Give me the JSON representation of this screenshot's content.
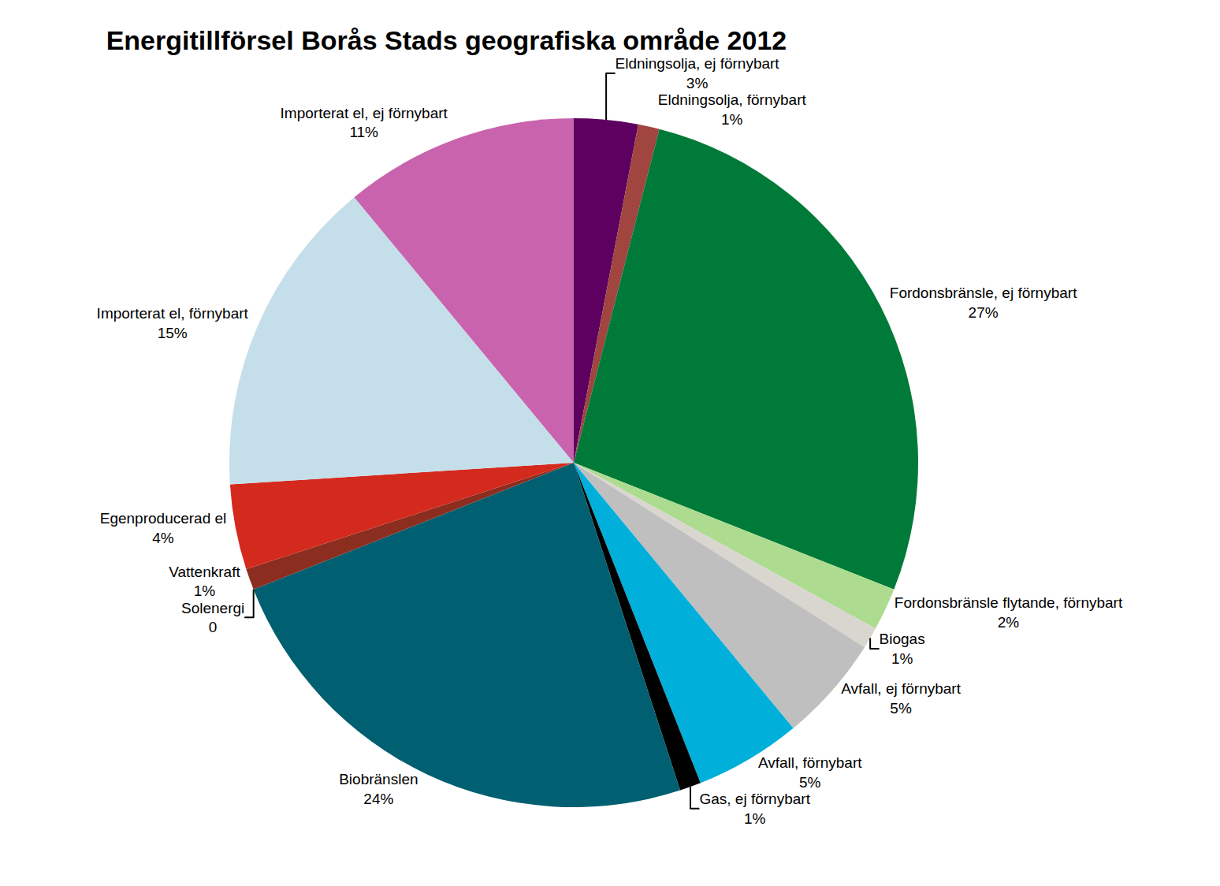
{
  "chart_data": {
    "type": "pie",
    "title": "Energitillförsel Borås Stads geografiska område 2012",
    "categories": [
      "Eldningsolja, ej förnybart",
      "Eldningsolja, förnybart",
      "Fordonsbränsle, ej förnybart",
      "Fordonsbränsle flytande, förnybart",
      "Biogas",
      "Avfall, ej förnybart",
      "Avfall, förnybart",
      "Gas, ej förnybart",
      "Biobränslen",
      "Solenergi",
      "Vattenkraft",
      "Egenproducerad el",
      "Importerat el, förnybart",
      "Importerat el, ej förnybart"
    ],
    "values": [
      3,
      1,
      27,
      2,
      1,
      5,
      5,
      1,
      24,
      0,
      1,
      4,
      15,
      11
    ],
    "value_labels": [
      "3%",
      "1%",
      "27%",
      "2%",
      "1%",
      "5%",
      "5%",
      "1%",
      "24%",
      "0",
      "1%",
      "4%",
      "15%",
      "11%"
    ],
    "colors": [
      "#5e0060",
      "#a0453f",
      "#007a38",
      "#addc91",
      "#d9d6cf",
      "#bfbfbf",
      "#00b0da",
      "#000000",
      "#005f71",
      "#f2c500",
      "#8b2e20",
      "#d42a1e",
      "#c5dfea",
      "#c963ae"
    ],
    "data_labels": true
  }
}
